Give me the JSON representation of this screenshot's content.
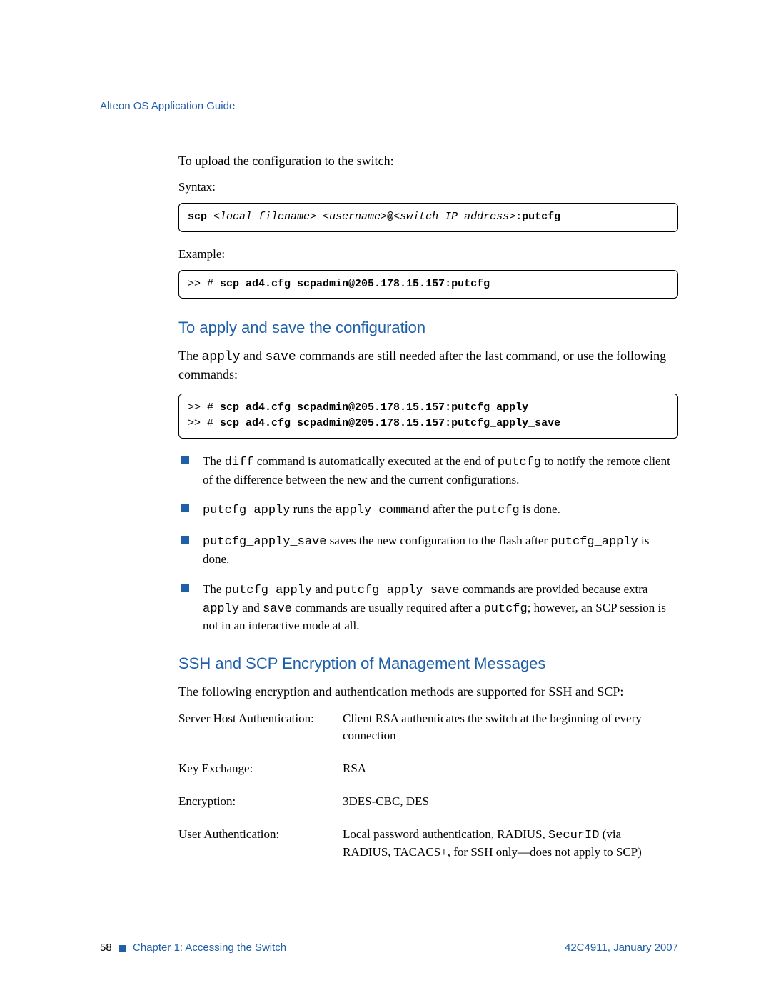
{
  "header": {
    "title": "Alteon OS Application Guide"
  },
  "section1": {
    "intro": "To upload the configuration to the switch:",
    "syntax_label": "Syntax:",
    "syntax_box_1": "scp",
    "syntax_box_2": " <local filename> <username>",
    "syntax_box_3": "@",
    "syntax_box_4": "<switch IP address>",
    "syntax_box_5": ":putcfg",
    "example_label": "Example:",
    "example_prefix": ">> # ",
    "example_cmd": "scp ad4.cfg scpadmin@205.178.15.157:putcfg"
  },
  "section2": {
    "heading": "To apply and save the configuration",
    "para_pre": "The ",
    "para_mono1": "apply",
    "para_mid": " and ",
    "para_mono2": "save",
    "para_post": " commands are still needed after the last command, or use the following commands:",
    "box_line1_prefix": ">> # ",
    "box_line1_cmd": "scp ad4.cfg scpadmin@205.178.15.157:putcfg_apply",
    "box_line2_prefix": ">> # ",
    "box_line2_cmd": "scp ad4.cfg scpadmin@205.178.15.157:putcfg_apply_save",
    "bullets": {
      "b1_a": "The ",
      "b1_m1": "diff",
      "b1_b": " command is automatically executed at the end of ",
      "b1_m2": "putcfg",
      "b1_c": " to notify the remote client of the difference between the new and the current configurations.",
      "b2_m1": "putcfg_apply",
      "b2_a": " runs the ",
      "b2_m2": "apply command",
      "b2_b": " after the ",
      "b2_m3": "putcfg",
      "b2_c": " is done.",
      "b3_m1": "putcfg_apply_save",
      "b3_a": " saves the new configuration to the flash after ",
      "b3_m2": "putcfg_apply",
      "b3_b": " is done.",
      "b4_a": "The ",
      "b4_m1": "putcfg_apply",
      "b4_b": " and ",
      "b4_m2": "putcfg_apply_save",
      "b4_c": " commands are provided because extra ",
      "b4_m3": "apply",
      "b4_d": " and ",
      "b4_m4": "save",
      "b4_e": " commands are usually required after a ",
      "b4_m5": "putcfg",
      "b4_f": "; however, an SCP session is not in an interactive mode at all."
    }
  },
  "section3": {
    "heading": "SSH and SCP Encryption of Management Messages",
    "intro": "The following encryption and authentication methods are supported for SSH and SCP:",
    "rows": [
      {
        "label": "Server Host Authentication:",
        "value": "Client RSA authenticates the switch at the beginning of every connection"
      },
      {
        "label": "Key Exchange:",
        "value": "RSA"
      },
      {
        "label": "Encryption:",
        "value": "3DES-CBC, DES"
      }
    ],
    "row4_label": "User Authentication:",
    "row4_a": "Local password authentication, RADIUS, ",
    "row4_mono": "SecurID",
    "row4_b": " (via RADIUS, TACACS+, for SSH only—does not apply to SCP)"
  },
  "footer": {
    "page": "58",
    "chapter": "Chapter 1:  Accessing the Switch",
    "doc": "42C4911, January 2007"
  }
}
